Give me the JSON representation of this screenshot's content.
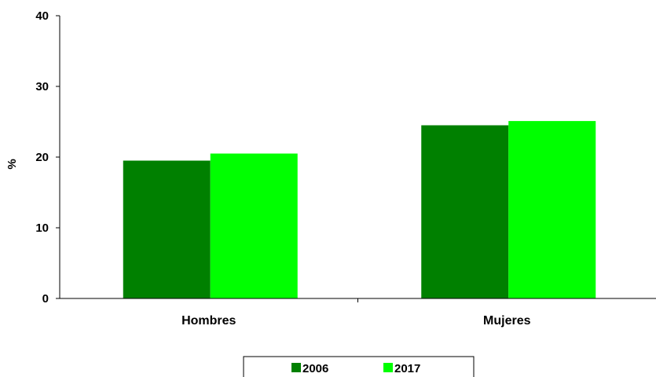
{
  "chart_data": {
    "type": "bar",
    "title": "",
    "xlabel": "",
    "ylabel": "%",
    "ylim": [
      0,
      40
    ],
    "yticks": [
      0,
      10,
      20,
      30,
      40
    ],
    "categories": [
      "Hombres",
      "Mujeres"
    ],
    "series": [
      {
        "name": "2006",
        "color": "#008000",
        "values": [
          19.5,
          24.5
        ]
      },
      {
        "name": "2017",
        "color": "#00ff00",
        "values": [
          20.5,
          25.1
        ]
      }
    ],
    "grid": false,
    "legend_position": "bottom"
  }
}
